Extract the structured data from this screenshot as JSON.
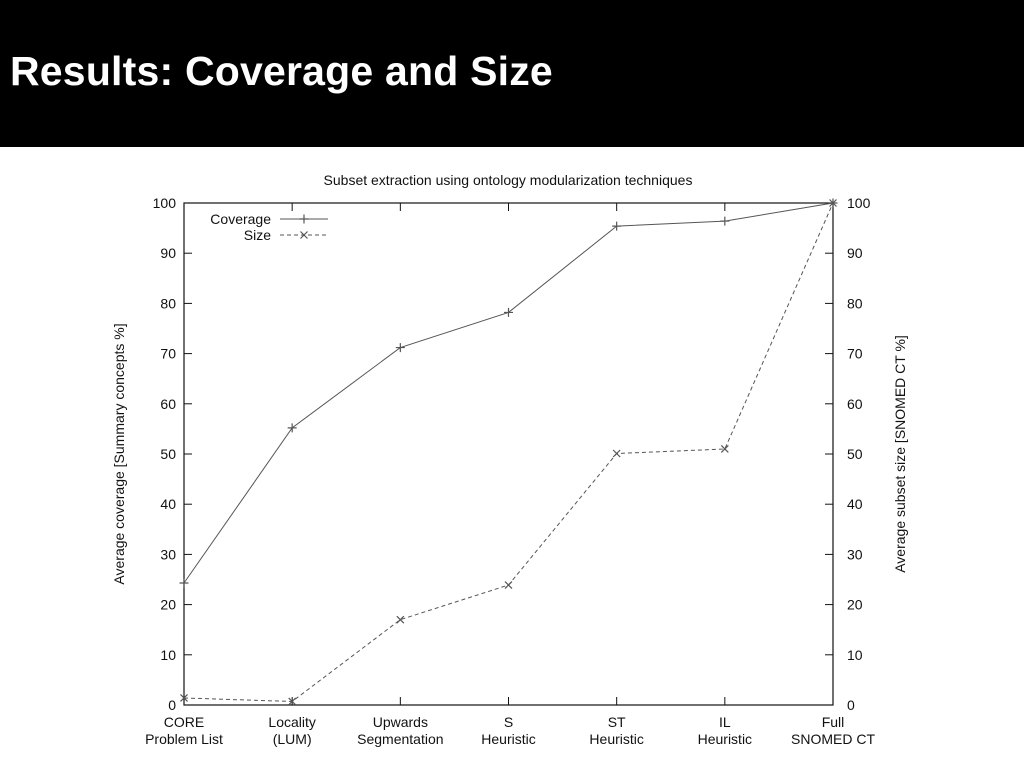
{
  "slide": {
    "title": "Results: Coverage and Size"
  },
  "chart_data": {
    "type": "line",
    "title": "Subset extraction using ontology modularization techniques",
    "categories": [
      [
        "CORE",
        "Problem List"
      ],
      [
        "Locality",
        "(LUM)"
      ],
      [
        "Upwards",
        "Segmentation"
      ],
      [
        "S",
        "Heuristic"
      ],
      [
        "ST",
        "Heuristic"
      ],
      [
        "IL",
        "Heuristic"
      ],
      [
        "Full",
        "SNOMED CT"
      ]
    ],
    "y_left_label": "Average coverage [Summary concepts %]",
    "y_right_label": "Average subset size [SNOMED CT %]",
    "ylim": [
      0,
      100
    ],
    "y_ticks": [
      0,
      10,
      20,
      30,
      40,
      50,
      60,
      70,
      80,
      90,
      100
    ],
    "grid": false,
    "legend_position": "top-left",
    "series": [
      {
        "name": "Coverage",
        "axis": "left",
        "line_style": "solid",
        "marker": "plus",
        "values": [
          24.3,
          55.2,
          71.2,
          78.2,
          95.4,
          96.4,
          100
        ]
      },
      {
        "name": "Size",
        "axis": "right",
        "line_style": "dashed",
        "marker": "cross",
        "values": [
          1.4,
          0.7,
          17.0,
          23.9,
          50.1,
          51.0,
          100
        ]
      }
    ],
    "colors": {
      "line": "#555555",
      "axis": "#111111"
    }
  }
}
